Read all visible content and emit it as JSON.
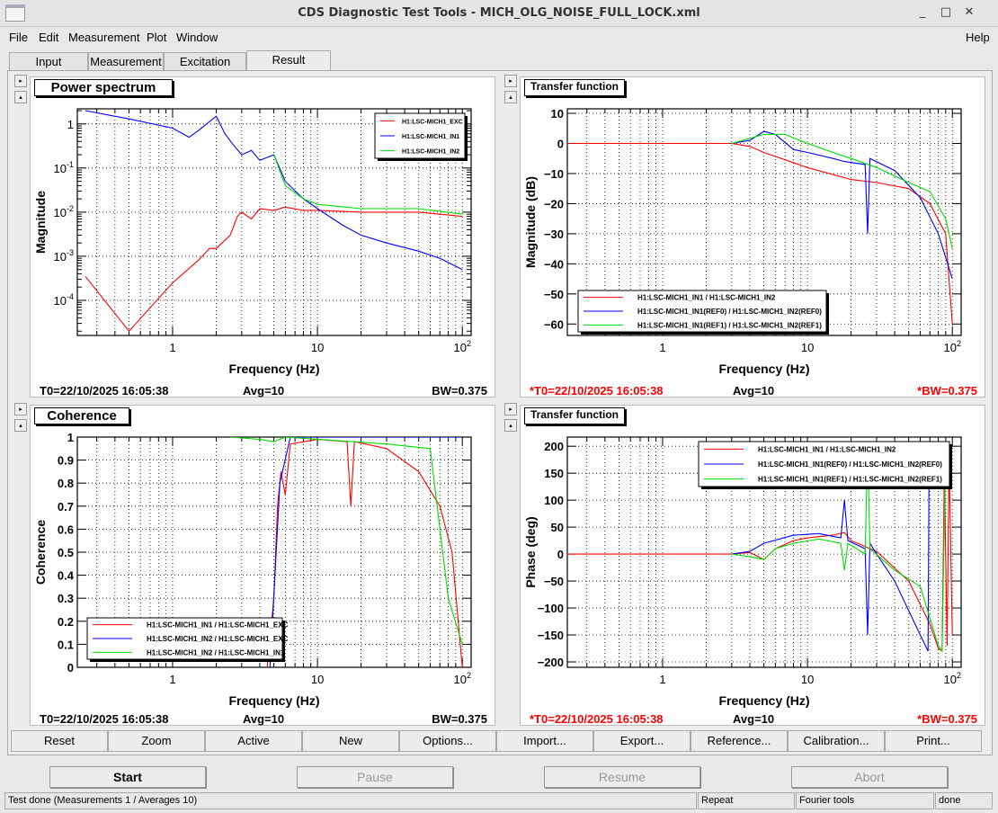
{
  "window": {
    "title": "CDS Diagnostic Test Tools - MICH_OLG_NOISE_FULL_LOCK.xml",
    "controls": [
      "_",
      "□",
      "✕"
    ],
    "icon": "window-icon"
  },
  "menu": [
    {
      "label": "File"
    },
    {
      "label": "Edit"
    },
    {
      "label": "Measurement"
    },
    {
      "label": "Plot"
    },
    {
      "label": "Window"
    }
  ],
  "help": "Help",
  "tabs": [
    {
      "label": "Input"
    },
    {
      "label": "Measurement"
    },
    {
      "label": "Excitation"
    },
    {
      "label": "Result",
      "active": true
    }
  ],
  "panels": [
    {
      "title": "Power spectrum",
      "t0": "T0=22/10/2025 16:05:38",
      "avg": "Avg=10",
      "bw": "BW=0.375",
      "ref": false
    },
    {
      "title": "Transfer function",
      "t0": "*T0=22/10/2025 16:05:38",
      "avg": "Avg=10",
      "bw": "*BW=0.375",
      "ref": true
    },
    {
      "title": "Coherence",
      "t0": "T0=22/10/2025 16:05:38",
      "avg": "Avg=10",
      "bw": "BW=0.375",
      "ref": false
    },
    {
      "title": "Transfer function",
      "t0": "*T0=22/10/2025 16:05:38",
      "avg": "Avg=10",
      "bw": "*BW=0.375",
      "ref": true
    }
  ],
  "toolbar": [
    {
      "label": "Reset"
    },
    {
      "label": "Zoom"
    },
    {
      "label": "Active"
    },
    {
      "label": "New"
    },
    {
      "label": "Options..."
    },
    {
      "label": "Import..."
    },
    {
      "label": "Export..."
    },
    {
      "label": "Reference..."
    },
    {
      "label": "Calibration..."
    },
    {
      "label": "Print..."
    }
  ],
  "controls": [
    {
      "label": "Start",
      "enabled": true
    },
    {
      "label": "Pause",
      "enabled": false
    },
    {
      "label": "Resume",
      "enabled": false
    },
    {
      "label": "Abort",
      "enabled": false
    }
  ],
  "status": {
    "message": "Test done (Measurements 1 / Averages 10)",
    "mode": "Repeat",
    "tool": "Fourier tools",
    "state": "done"
  },
  "colors": {
    "red": "#ff0000",
    "blue": "#0000ff",
    "green": "#00dd00"
  },
  "chart_data": [
    {
      "type": "line",
      "xlabel": "Frequency (Hz)",
      "ylabel": "Magnitude",
      "xscale": "log",
      "yscale": "log",
      "xlim": [
        0.22,
        115
      ],
      "ylim": [
        1.6e-05,
        2.2
      ],
      "grid": true,
      "legend": "top-right",
      "xticks": [
        "1",
        "10",
        "10^2"
      ],
      "yticks": [
        "1",
        "10^-1",
        "10^-2",
        "10^-3",
        "10^-4"
      ],
      "series": [
        {
          "name": "H1:LSC-MICH1_EXC",
          "color": "#ff0000",
          "points": [
            [
              0.25,
              0.00035
            ],
            [
              0.5,
              2e-05
            ],
            [
              1,
              0.00025
            ],
            [
              1.5,
              0.0008
            ],
            [
              1.8,
              0.0015
            ],
            [
              2,
              0.0015
            ],
            [
              2.5,
              0.003
            ],
            [
              2.8,
              0.008
            ],
            [
              3,
              0.01
            ],
            [
              3.5,
              0.007
            ],
            [
              4,
              0.012
            ],
            [
              5,
              0.011
            ],
            [
              6,
              0.013
            ],
            [
              8,
              0.011
            ],
            [
              10,
              0.011
            ],
            [
              20,
              0.01
            ],
            [
              50,
              0.01
            ],
            [
              100,
              0.008
            ]
          ]
        },
        {
          "name": "H1:LSC-MICH1_IN1",
          "color": "#0000ff",
          "points": [
            [
              0.25,
              2
            ],
            [
              0.5,
              1.3
            ],
            [
              1,
              0.8
            ],
            [
              1.3,
              0.5
            ],
            [
              1.5,
              0.7
            ],
            [
              2,
              1.5
            ],
            [
              2.3,
              0.6
            ],
            [
              2.6,
              0.35
            ],
            [
              3,
              0.2
            ],
            [
              3.5,
              0.25
            ],
            [
              4,
              0.15
            ],
            [
              5,
              0.2
            ],
            [
              6,
              0.05
            ],
            [
              8,
              0.02
            ],
            [
              10,
              0.012
            ],
            [
              15,
              0.005
            ],
            [
              20,
              0.003
            ],
            [
              30,
              0.002
            ],
            [
              50,
              0.0013
            ],
            [
              70,
              0.0009
            ],
            [
              100,
              0.0005
            ]
          ]
        },
        {
          "name": "H1:LSC-MICH1_IN2",
          "color": "#00dd00",
          "points": [
            [
              5,
              0.2
            ],
            [
              6,
              0.04
            ],
            [
              8,
              0.02
            ],
            [
              10,
              0.015
            ],
            [
              20,
              0.012
            ],
            [
              50,
              0.012
            ],
            [
              100,
              0.009
            ]
          ]
        }
      ]
    },
    {
      "type": "line",
      "xlabel": "Frequency (Hz)",
      "ylabel": "Magnitude (dB)",
      "xscale": "log",
      "xlim": [
        0.22,
        115
      ],
      "ylim": [
        -63.8,
        11.5
      ],
      "grid": true,
      "legend": "bottom-left",
      "xticks": [
        "1",
        "10",
        "10^2"
      ],
      "yticks": [
        10,
        0,
        -10,
        -20,
        -30,
        -40,
        -50,
        -60
      ],
      "series": [
        {
          "name": "H1:LSC-MICH1_IN1 / H1:LSC-MICH1_IN2",
          "color": "#ff0000",
          "points": [
            [
              0.22,
              0
            ],
            [
              3,
              0
            ],
            [
              4,
              -1
            ],
            [
              5,
              -3
            ],
            [
              10,
              -8
            ],
            [
              20,
              -12
            ],
            [
              30,
              -13
            ],
            [
              50,
              -15
            ],
            [
              70,
              -20
            ],
            [
              90,
              -30
            ],
            [
              100,
              -60
            ]
          ]
        },
        {
          "name": "H1:LSC-MICH1_IN1(REF0) / H1:LSC-MICH1_IN2(REF0)",
          "color": "#0000ff",
          "points": [
            [
              3,
              0
            ],
            [
              4,
              1
            ],
            [
              5,
              4
            ],
            [
              6,
              3
            ],
            [
              8,
              -2
            ],
            [
              10,
              -3
            ],
            [
              15,
              -5
            ],
            [
              18,
              -6
            ],
            [
              25,
              -7
            ],
            [
              26,
              -30
            ],
            [
              27,
              -5
            ],
            [
              40,
              -9
            ],
            [
              60,
              -18
            ],
            [
              80,
              -30
            ],
            [
              100,
              -45
            ]
          ]
        },
        {
          "name": "H1:LSC-MICH1_IN1(REF1) / H1:LSC-MICH1_IN2(REF1)",
          "color": "#00dd00",
          "points": [
            [
              3,
              0
            ],
            [
              5,
              3
            ],
            [
              7,
              3
            ],
            [
              10,
              0
            ],
            [
              15,
              -3
            ],
            [
              20,
              -5
            ],
            [
              30,
              -8
            ],
            [
              50,
              -13
            ],
            [
              70,
              -16
            ],
            [
              90,
              -25
            ],
            [
              100,
              -35
            ]
          ]
        }
      ]
    },
    {
      "type": "line",
      "xlabel": "Frequency (Hz)",
      "ylabel": "Coherence",
      "xscale": "log",
      "xlim": [
        0.22,
        115
      ],
      "ylim": [
        0,
        1
      ],
      "grid": true,
      "legend": "bottom-left",
      "xticks": [
        "1",
        "10",
        "10^2"
      ],
      "yticks": [
        0,
        0.1,
        0.2,
        0.3,
        0.4,
        0.5,
        0.6,
        0.7,
        0.8,
        0.9,
        1
      ],
      "series": [
        {
          "name": "H1:LSC-MICH1_IN1 / H1:LSC-MICH1_EXC",
          "color": "#ff0000",
          "points": [
            [
              4.5,
              0
            ],
            [
              5,
              0.3
            ],
            [
              5.3,
              0.7
            ],
            [
              5.6,
              0.85
            ],
            [
              6,
              0.75
            ],
            [
              6.5,
              0.97
            ],
            [
              10,
              0.99
            ],
            [
              16,
              0.98
            ],
            [
              17,
              0.7
            ],
            [
              18,
              0.98
            ],
            [
              30,
              0.95
            ],
            [
              50,
              0.85
            ],
            [
              70,
              0.7
            ],
            [
              85,
              0.5
            ],
            [
              100,
              0
            ]
          ]
        },
        {
          "name": "H1:LSC-MICH1_IN2 / H1:LSC-MICH1_EXC",
          "color": "#0000ff",
          "points": [
            [
              4.7,
              0
            ],
            [
              5.5,
              0.8
            ],
            [
              6.5,
              1
            ],
            [
              100,
              1
            ]
          ]
        },
        {
          "name": "H1:LSC-MICH1_IN2 / H1:LSC-MICH1_IN1",
          "color": "#00dd00",
          "points": [
            [
              2.5,
              1
            ],
            [
              4,
              0.99
            ],
            [
              5,
              0.98
            ],
            [
              6,
              1
            ],
            [
              30,
              0.97
            ],
            [
              60,
              0.95
            ],
            [
              70,
              0.6
            ],
            [
              80,
              0.3
            ],
            [
              100,
              0.1
            ]
          ]
        }
      ]
    },
    {
      "type": "line",
      "xlabel": "Frequency (Hz)",
      "ylabel": "Phase (deg)",
      "xscale": "log",
      "xlim": [
        0.22,
        115
      ],
      "ylim": [
        -210,
        217
      ],
      "grid": true,
      "legend": "top-right",
      "xticks": [
        "1",
        "10",
        "10^2"
      ],
      "yticks": [
        200,
        150,
        100,
        50,
        0,
        -50,
        -100,
        -150,
        -200
      ],
      "series": [
        {
          "name": "H1:LSC-MICH1_IN1 / H1:LSC-MICH1_IN2",
          "color": "#ff0000",
          "points": [
            [
              0.22,
              0
            ],
            [
              3,
              0
            ],
            [
              4,
              3
            ],
            [
              5,
              -10
            ],
            [
              6,
              10
            ],
            [
              8,
              25
            ],
            [
              10,
              30
            ],
            [
              15,
              35
            ],
            [
              18,
              40
            ],
            [
              20,
              25
            ],
            [
              30,
              5
            ],
            [
              50,
              -50
            ],
            [
              70,
              -130
            ],
            [
              80,
              -175
            ],
            [
              85,
              -180
            ],
            [
              88,
              150
            ],
            [
              92,
              -170
            ],
            [
              95,
              180
            ],
            [
              100,
              -150
            ]
          ]
        },
        {
          "name": "H1:LSC-MICH1_IN1(REF0) / H1:LSC-MICH1_IN2(REF0)",
          "color": "#0000ff",
          "points": [
            [
              3,
              0
            ],
            [
              4,
              5
            ],
            [
              5,
              20
            ],
            [
              8,
              35
            ],
            [
              12,
              38
            ],
            [
              17,
              30
            ],
            [
              18,
              100
            ],
            [
              19,
              25
            ],
            [
              25,
              10
            ],
            [
              26,
              -150
            ],
            [
              27,
              20
            ],
            [
              30,
              0
            ],
            [
              40,
              -50
            ],
            [
              60,
              -150
            ],
            [
              68,
              -180
            ],
            [
              69,
              150
            ]
          ]
        },
        {
          "name": "H1:LSC-MICH1_IN1(REF1) / H1:LSC-MICH1_IN2(REF1)",
          "color": "#00dd00",
          "points": [
            [
              3,
              0
            ],
            [
              4,
              -5
            ],
            [
              5,
              -10
            ],
            [
              6,
              10
            ],
            [
              8,
              20
            ],
            [
              12,
              28
            ],
            [
              17,
              20
            ],
            [
              18,
              -30
            ],
            [
              19,
              20
            ],
            [
              25,
              0
            ],
            [
              26,
              200
            ],
            [
              27,
              10
            ],
            [
              40,
              -30
            ],
            [
              60,
              -60
            ],
            [
              80,
              -170
            ],
            [
              85,
              -180
            ],
            [
              90,
              200
            ]
          ]
        }
      ]
    }
  ]
}
